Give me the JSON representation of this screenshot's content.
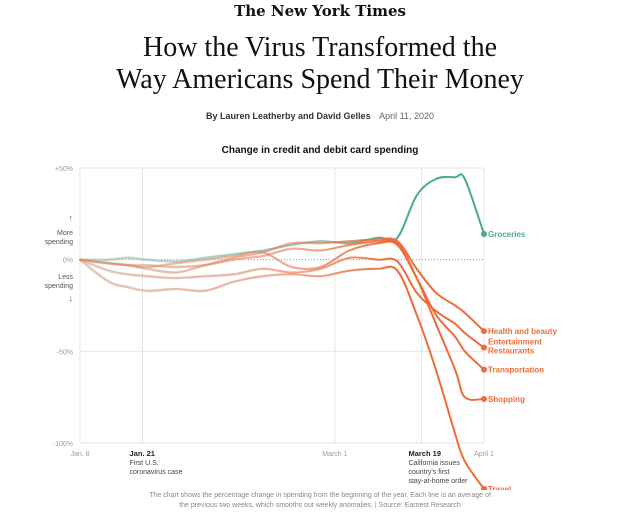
{
  "header": {
    "masthead": "The New York Times",
    "headline_line1": "How the Virus Transformed the",
    "headline_line2": "Way Americans Spend Their Money",
    "authors": "By Lauren Leatherby and David Gelles",
    "date": "April 11, 2020"
  },
  "chart_data": {
    "type": "line",
    "title": "Change in credit and debit card spending",
    "y_tick_labels": [
      "+50%",
      "0%",
      "-50%",
      "-100%"
    ],
    "y_ticks": [
      50,
      0,
      -50,
      -100
    ],
    "ylim": [
      -100,
      50
    ],
    "x_range": [
      0,
      84
    ],
    "x_tick_labels": [
      {
        "label": "Jan. 8",
        "x": 0
      },
      {
        "label": "Jan. 21",
        "x": 13
      },
      {
        "label": "March 1",
        "x": 53
      },
      {
        "label": "March 19",
        "x": 71
      },
      {
        "label": "April 1",
        "x": 84
      }
    ],
    "y_axis_notes": {
      "up_arrow": "↑",
      "more_line1": "More",
      "more_line2": "spending",
      "less_line1": "Less",
      "less_line2": "spending",
      "down_arrow": "↓"
    },
    "annotations": {
      "jan21_line1": "First U.S.",
      "jan21_line2": "coronavirus case",
      "mar19_line1": "California issues",
      "mar19_line2": "country's first",
      "mar19_line3": "stay-at-home order"
    },
    "series": [
      {
        "name": "Groceries",
        "color": "#4aaa94",
        "x": [
          0,
          6,
          10,
          14,
          20,
          26,
          32,
          38,
          44,
          50,
          56,
          62,
          66,
          70,
          74,
          78,
          80,
          84
        ],
        "y": [
          0,
          0,
          1,
          0,
          -1,
          1,
          3,
          5,
          8,
          10,
          9,
          12,
          12,
          35,
          44,
          45,
          44,
          14
        ]
      },
      {
        "name": "Health and beauty",
        "color": "#ef6c39",
        "x": [
          0,
          6,
          10,
          14,
          20,
          26,
          32,
          38,
          44,
          50,
          56,
          62,
          66,
          70,
          74,
          78,
          80,
          84
        ],
        "y": [
          0,
          -2,
          -3,
          -5,
          -7,
          -3,
          1,
          4,
          9,
          9,
          10,
          11,
          10,
          -5,
          -18,
          -25,
          -29,
          -39
        ]
      },
      {
        "name": "Entertainment Restaurants",
        "color": "#ef6c39",
        "x": [
          0,
          6,
          10,
          14,
          20,
          26,
          32,
          38,
          44,
          50,
          56,
          62,
          66,
          70,
          74,
          78,
          80,
          84
        ],
        "y": [
          0,
          -6,
          -8,
          -9,
          -10,
          -9,
          -8,
          -5,
          -7,
          -5,
          1,
          0,
          -1,
          -18,
          -28,
          -35,
          -40,
          -48
        ]
      },
      {
        "name": "Transportation",
        "color": "#ef6c39",
        "x": [
          0,
          6,
          10,
          14,
          20,
          26,
          32,
          38,
          44,
          50,
          56,
          62,
          66,
          70,
          74,
          78,
          80,
          84
        ],
        "y": [
          0,
          -2,
          -3,
          -4,
          -2,
          0,
          2,
          4,
          -4,
          -4,
          5,
          9,
          8,
          -10,
          -30,
          -42,
          -50,
          -60
        ]
      },
      {
        "name": "Shopping",
        "color": "#ef6c39",
        "x": [
          0,
          6,
          10,
          14,
          20,
          26,
          32,
          38,
          44,
          50,
          56,
          62,
          66,
          70,
          74,
          78,
          80,
          84
        ],
        "y": [
          0,
          -2,
          -3,
          -3,
          -4,
          -3,
          0,
          2,
          6,
          5,
          8,
          10,
          9,
          -10,
          -35,
          -60,
          -75,
          -76
        ]
      },
      {
        "name": "Travel",
        "color": "#ef6c39",
        "x": [
          0,
          6,
          10,
          14,
          20,
          26,
          32,
          38,
          44,
          50,
          56,
          62,
          66,
          70,
          74,
          78,
          80,
          84
        ],
        "y": [
          0,
          -12,
          -15,
          -17,
          -16,
          -17,
          -12,
          -9,
          -8,
          -9,
          -6,
          -5,
          -6,
          -30,
          -60,
          -95,
          -110,
          -125
        ]
      }
    ]
  },
  "footnote": {
    "line1": "The chart shows the percentage change in spending from the beginning of the year. Each line is an average of",
    "line2": "the previous two weeks, which smooths out weekly anomalies. | Source: Earnest Research"
  }
}
